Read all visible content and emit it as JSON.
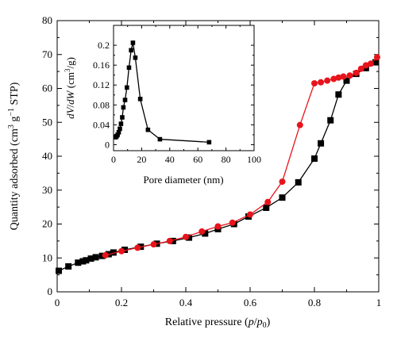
{
  "chart_data": [
    {
      "type": "line",
      "xlabel_prefix": "Relative pressure (",
      "xlabel_p": "p",
      "xlabel_slash": "/",
      "xlabel_p0": "p",
      "xlabel_sub": "0",
      "xlabel_suffix": ")",
      "ylabel_prefix": "Quantity adsorbed (cm",
      "ylabel_sup1": "3",
      "ylabel_mid": " g",
      "ylabel_sup2": "−1",
      "ylabel_suffix": " STP)",
      "xlim": [
        0,
        1
      ],
      "ylim": [
        0,
        80
      ],
      "xticks": [
        "0",
        "0.2",
        "0.4",
        "0.6",
        "0.8",
        "1"
      ],
      "yticks": [
        "0",
        "10",
        "20",
        "30",
        "40",
        "50",
        "60",
        "70",
        "80"
      ],
      "grid": false,
      "series": [
        {
          "color": "#000000",
          "marker": "square",
          "points": [
            [
              0.005,
              6.2
            ],
            [
              0.035,
              7.5
            ],
            [
              0.065,
              8.6
            ],
            [
              0.08,
              9.0
            ],
            [
              0.09,
              9.3
            ],
            [
              0.105,
              9.8
            ],
            [
              0.12,
              10.2
            ],
            [
              0.14,
              10.6
            ],
            [
              0.16,
              11.1
            ],
            [
              0.175,
              11.6
            ],
            [
              0.21,
              12.4
            ],
            [
              0.26,
              13.3
            ],
            [
              0.31,
              14.2
            ],
            [
              0.36,
              15.0
            ],
            [
              0.41,
              16.0
            ],
            [
              0.46,
              17.2
            ],
            [
              0.5,
              18.5
            ],
            [
              0.55,
              20.0
            ],
            [
              0.595,
              22.2
            ],
            [
              0.65,
              24.8
            ],
            [
              0.7,
              27.8
            ],
            [
              0.75,
              32.3
            ],
            [
              0.8,
              39.3
            ],
            [
              0.82,
              43.8
            ],
            [
              0.85,
              50.6
            ],
            [
              0.875,
              58.2
            ],
            [
              0.9,
              62.3
            ],
            [
              0.93,
              64.3
            ],
            [
              0.96,
              66.0
            ],
            [
              0.99,
              67.7
            ]
          ]
        },
        {
          "color": "#e8141b",
          "marker": "circle",
          "points": [
            [
              0.995,
              69.2
            ],
            [
              0.975,
              67.3
            ],
            [
              0.96,
              66.8
            ],
            [
              0.945,
              65.8
            ],
            [
              0.93,
              64.6
            ],
            [
              0.91,
              63.8
            ],
            [
              0.89,
              63.5
            ],
            [
              0.875,
              63.2
            ],
            [
              0.86,
              62.8
            ],
            [
              0.84,
              62.3
            ],
            [
              0.82,
              61.8
            ],
            [
              0.8,
              61.5
            ],
            [
              0.755,
              49.2
            ],
            [
              0.7,
              32.5
            ],
            [
              0.655,
              26.5
            ],
            [
              0.6,
              22.8
            ],
            [
              0.545,
              20.4
            ],
            [
              0.5,
              19.3
            ],
            [
              0.45,
              17.8
            ],
            [
              0.4,
              16.2
            ],
            [
              0.35,
              15.0
            ],
            [
              0.3,
              14.0
            ],
            [
              0.25,
              13.0
            ],
            [
              0.2,
              12.0
            ],
            [
              0.15,
              10.8
            ]
          ]
        }
      ]
    },
    {
      "type": "line",
      "xlabel": "Pore diameter (nm)",
      "ylabel_prefix": "dV",
      "ylabel_slash": "/",
      "ylabel_dw": "dW",
      "ylabel_open": " (cm",
      "ylabel_sup": "3",
      "ylabel_close": "/g)",
      "xlim": [
        0,
        100
      ],
      "ylim": [
        -0.012,
        0.24
      ],
      "xticks": [
        "0",
        "20",
        "40",
        "60",
        "80",
        "100"
      ],
      "yticks": [
        "0",
        "0.04",
        "0.08",
        "0.12",
        "0.16",
        "0.2"
      ],
      "grid": false,
      "series": [
        {
          "color": "#000000",
          "marker": "square",
          "points": [
            [
              1.5,
              0.015
            ],
            [
              2.2,
              0.017
            ],
            [
              2.9,
              0.02
            ],
            [
              3.7,
              0.025
            ],
            [
              4.5,
              0.032
            ],
            [
              5.3,
              0.042
            ],
            [
              6.2,
              0.055
            ],
            [
              7.0,
              0.075
            ],
            [
              8.2,
              0.09
            ],
            [
              9.5,
              0.115
            ],
            [
              11.0,
              0.155
            ],
            [
              12.5,
              0.19
            ],
            [
              13.8,
              0.205
            ],
            [
              15.5,
              0.175
            ],
            [
              19.0,
              0.092
            ],
            [
              24.5,
              0.03
            ],
            [
              33.0,
              0.011
            ],
            [
              68.0,
              0.005
            ]
          ]
        }
      ]
    }
  ]
}
